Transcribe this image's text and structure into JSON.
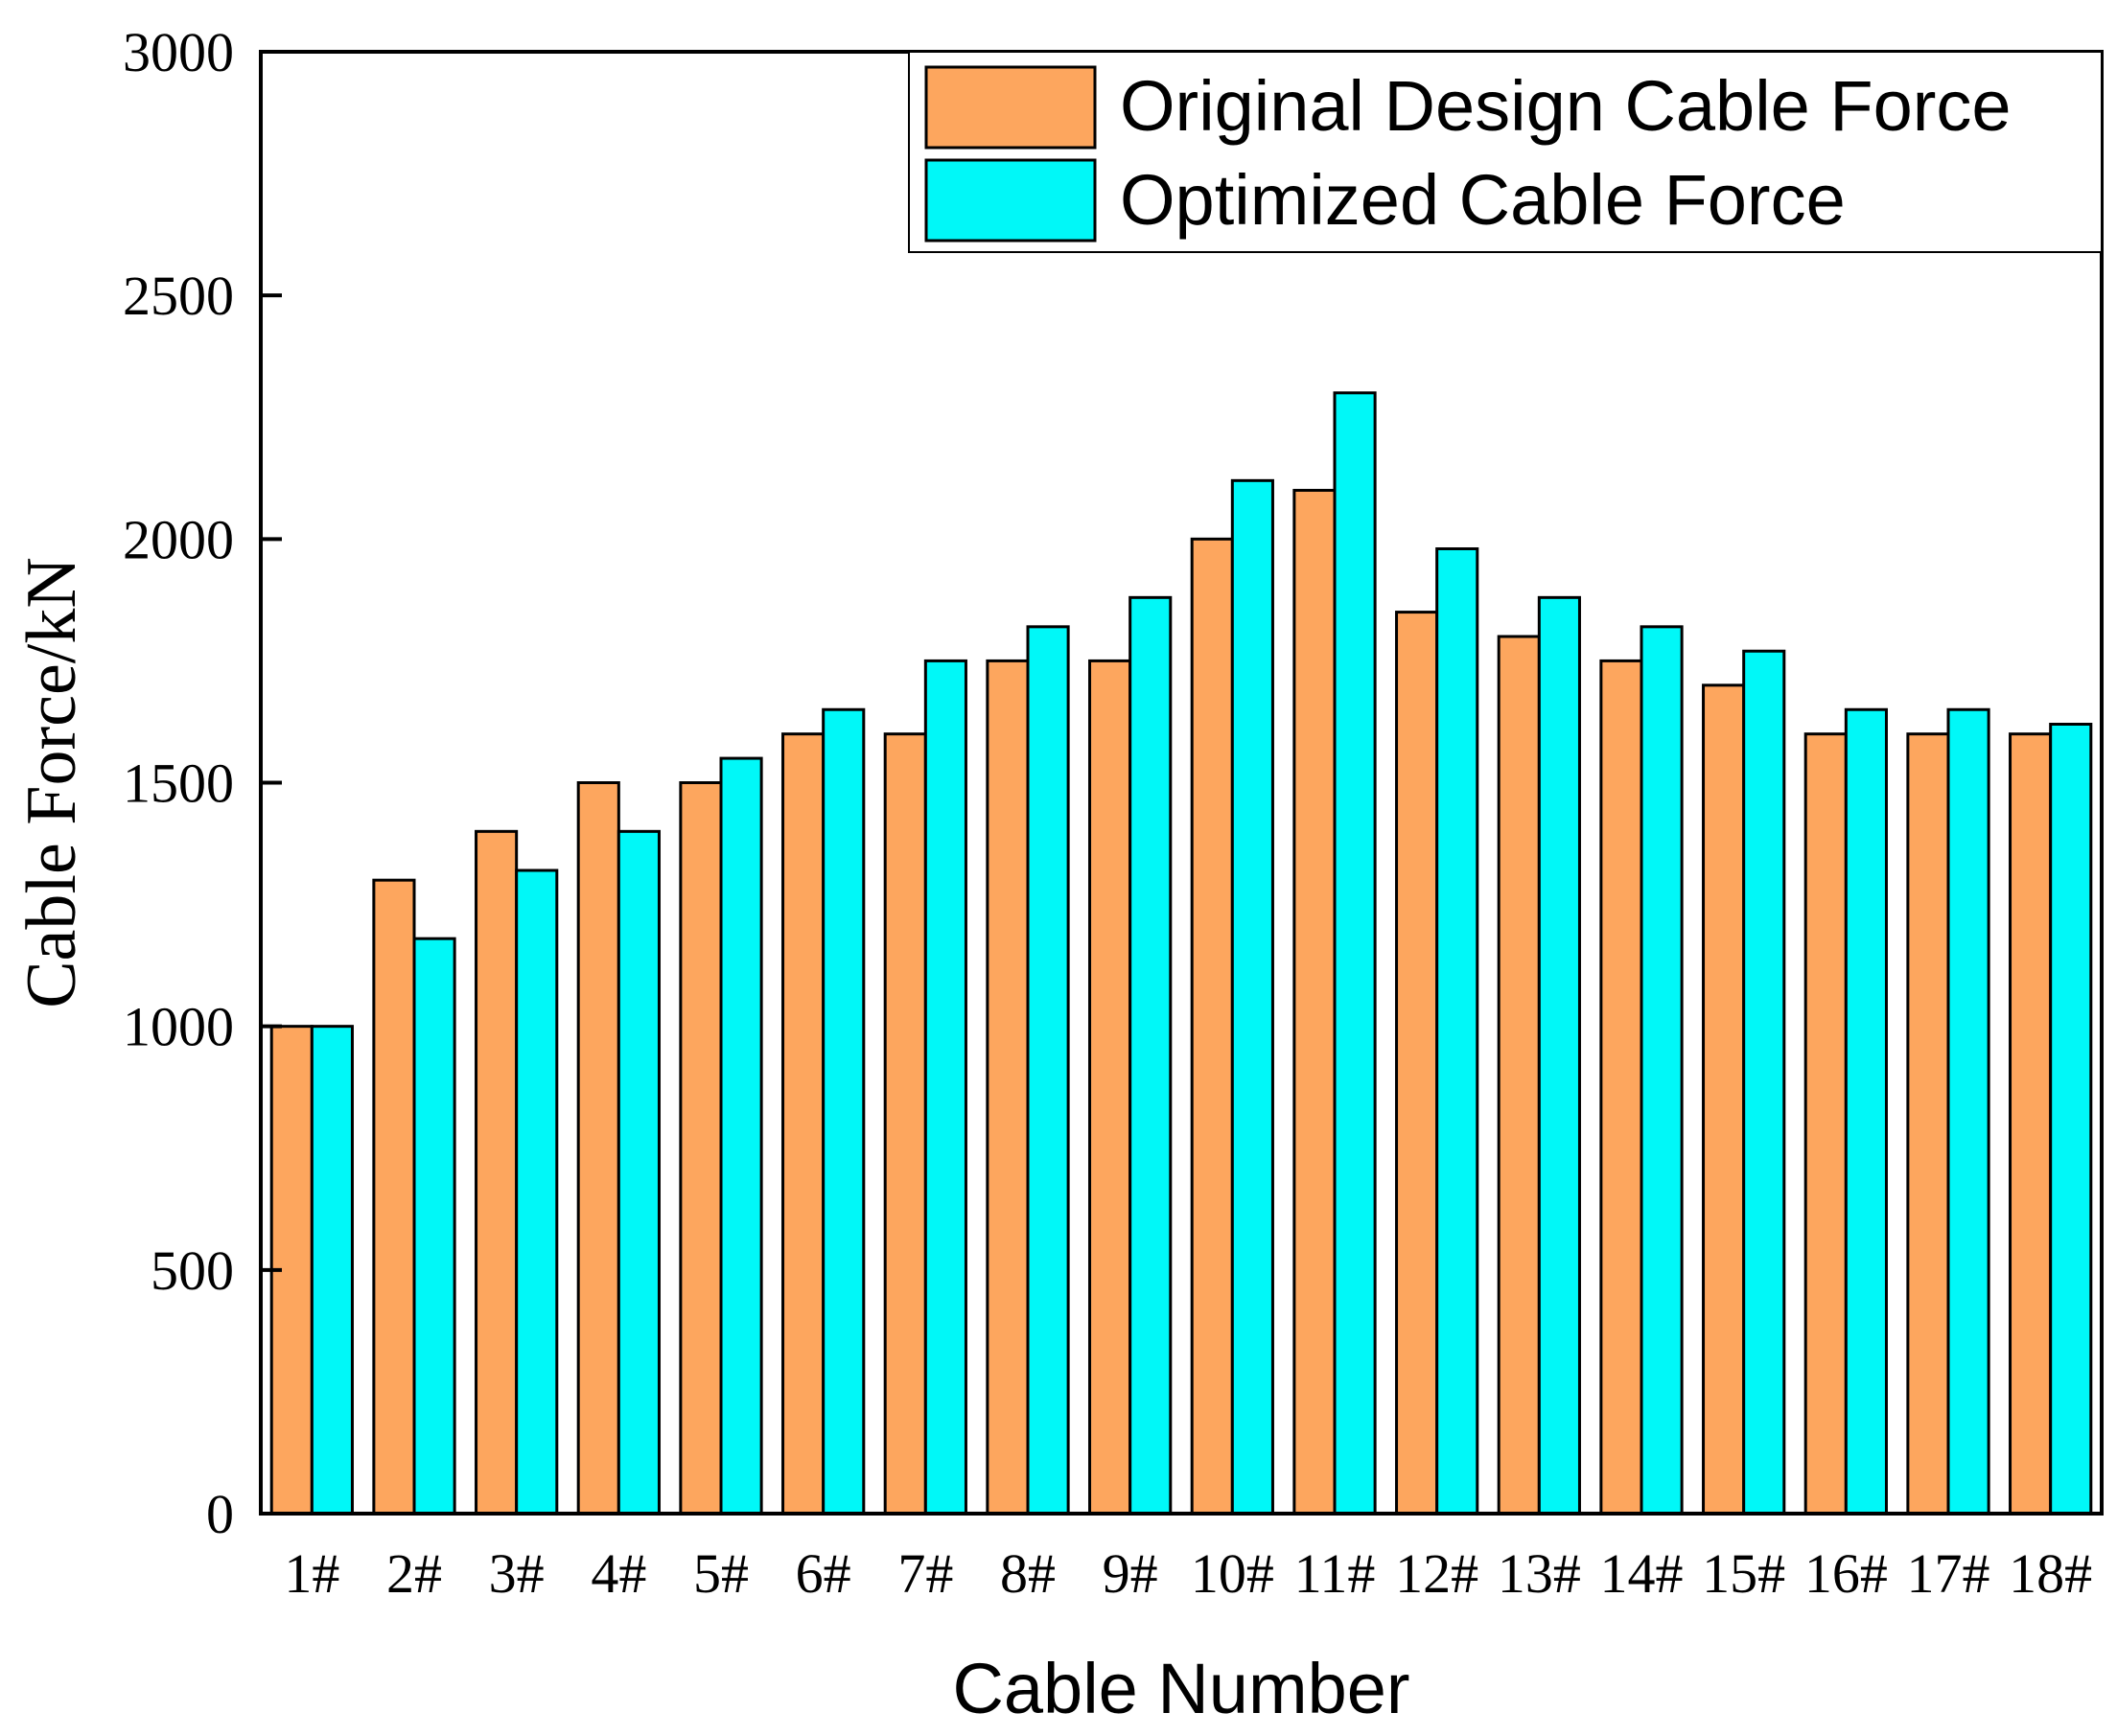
{
  "chart_data": {
    "type": "bar",
    "categories": [
      "1#",
      "2#",
      "3#",
      "4#",
      "5#",
      "6#",
      "7#",
      "8#",
      "9#",
      "10#",
      "11#",
      "12#",
      "13#",
      "14#",
      "15#",
      "16#",
      "17#",
      "18#"
    ],
    "series": [
      {
        "name": "Original Design Cable Force",
        "color": "#FDA65E",
        "values": [
          1000,
          1300,
          1400,
          1500,
          1500,
          1600,
          1600,
          1750,
          1750,
          2000,
          2100,
          1850,
          1800,
          1750,
          1700,
          1600,
          1600,
          1600
        ]
      },
      {
        "name": "Optimized Cable Force",
        "color": "#00F8F8",
        "values": [
          1000,
          1180,
          1320,
          1400,
          1550,
          1650,
          1750,
          1820,
          1880,
          2120,
          2300,
          1980,
          1880,
          1820,
          1770,
          1650,
          1650,
          1620
        ]
      }
    ],
    "xlabel": "Cable Number",
    "ylabel": "Cable Force/kN",
    "ylim": [
      0,
      3000
    ],
    "yticks": [
      "0",
      "500",
      "1000",
      "1500",
      "2000",
      "2500",
      "3000"
    ],
    "grid": false,
    "legend_position": "top-right"
  }
}
